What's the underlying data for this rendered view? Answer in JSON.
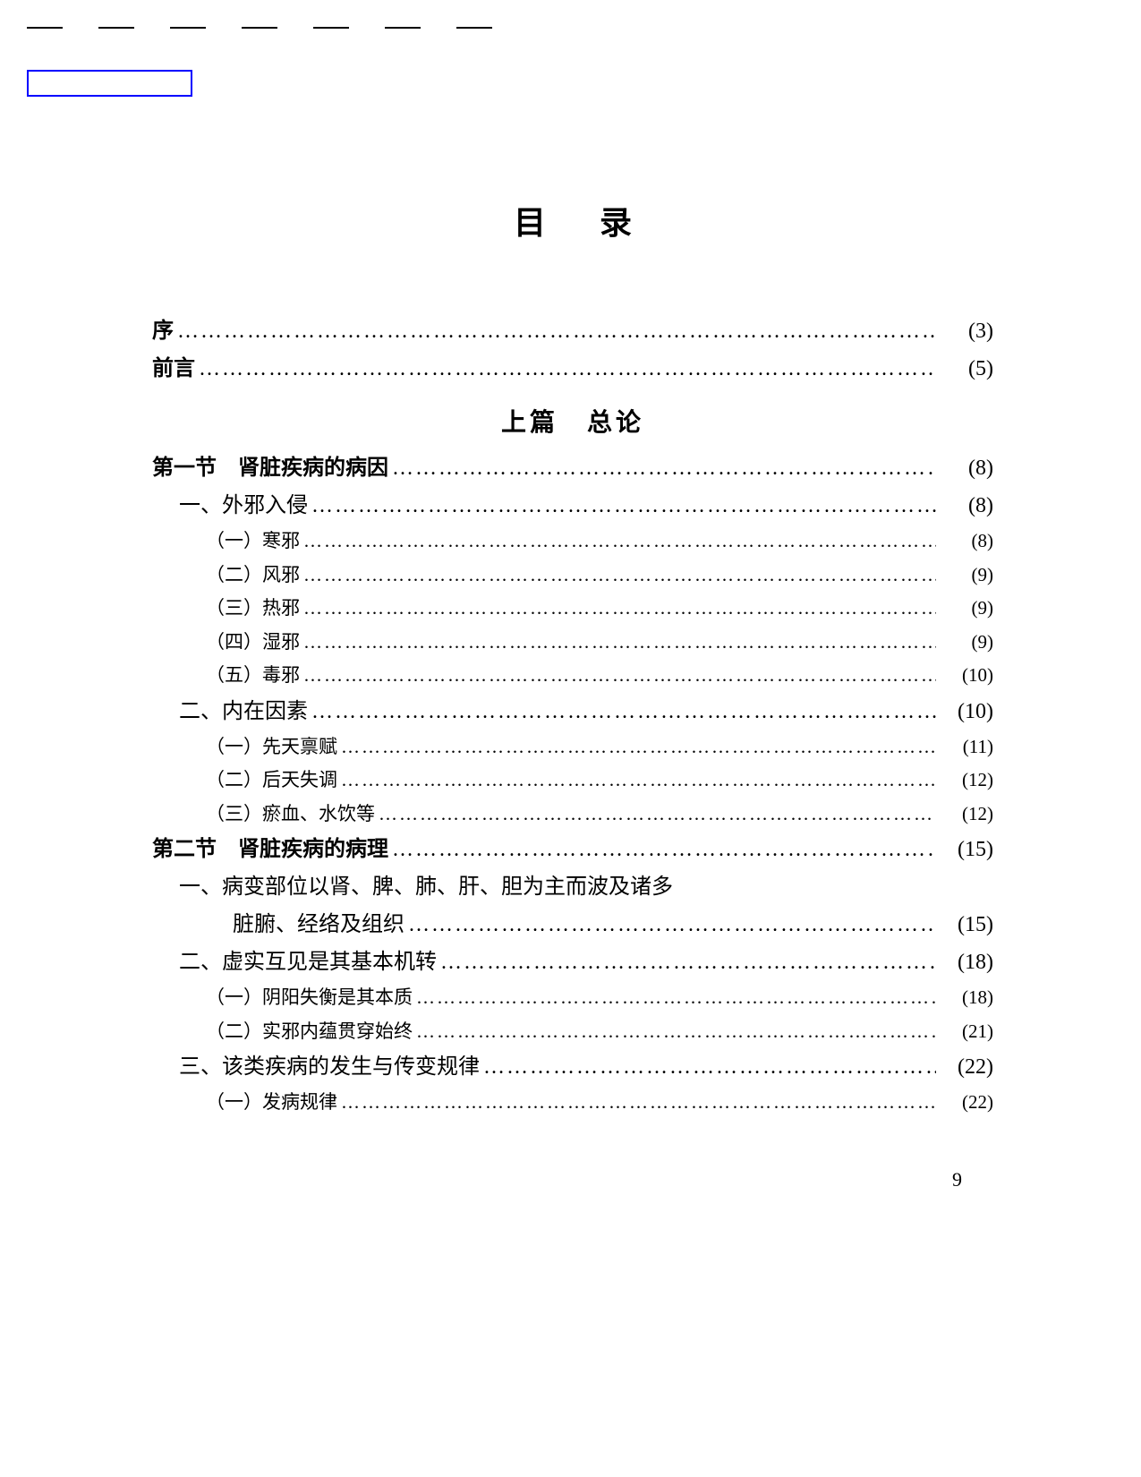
{
  "title": "目录",
  "section_header": "上篇　总论",
  "page_number": "9",
  "entries": [
    {
      "label": "序",
      "page": "(3)",
      "indent": 0,
      "bold": true,
      "small": false
    },
    {
      "label": "前言",
      "page": "(5)",
      "indent": 0,
      "bold": true,
      "small": false
    }
  ],
  "entries2": [
    {
      "label": "第一节　肾脏疾病的病因",
      "page": "(8)",
      "indent": 0,
      "bold": true,
      "small": false
    },
    {
      "label": "一、外邪入侵",
      "page": "(8)",
      "indent": 1,
      "bold": false,
      "small": false
    },
    {
      "label": "（一）寒邪",
      "page": "(8)",
      "indent": 2,
      "bold": false,
      "small": true
    },
    {
      "label": "（二）风邪",
      "page": "(9)",
      "indent": 2,
      "bold": false,
      "small": true
    },
    {
      "label": "（三）热邪",
      "page": "(9)",
      "indent": 2,
      "bold": false,
      "small": true
    },
    {
      "label": "（四）湿邪",
      "page": "(9)",
      "indent": 2,
      "bold": false,
      "small": true
    },
    {
      "label": "（五）毒邪",
      "page": "(10)",
      "indent": 2,
      "bold": false,
      "small": true
    },
    {
      "label": "二、内在因素",
      "page": "(10)",
      "indent": 1,
      "bold": false,
      "small": false
    },
    {
      "label": "（一）先天禀赋",
      "page": "(11)",
      "indent": 2,
      "bold": false,
      "small": true
    },
    {
      "label": "（二）后天失调",
      "page": "(12)",
      "indent": 2,
      "bold": false,
      "small": true
    },
    {
      "label": "（三）瘀血、水饮等",
      "page": "(12)",
      "indent": 2,
      "bold": false,
      "small": true
    },
    {
      "label": "第二节　肾脏疾病的病理",
      "page": "(15)",
      "indent": 0,
      "bold": true,
      "small": false
    }
  ],
  "multiline": {
    "line1": "一、病变部位以肾、脾、肺、肝、胆为主而波及诸多",
    "line2": "脏腑、经络及组织",
    "page": "(15)"
  },
  "entries3": [
    {
      "label": "二、虚实互见是其基本机转",
      "page": "(18)",
      "indent": 1,
      "bold": false,
      "small": false
    },
    {
      "label": "（一）阴阳失衡是其本质",
      "page": "(18)",
      "indent": 2,
      "bold": false,
      "small": true
    },
    {
      "label": "（二）实邪内蕴贯穿始终",
      "page": "(21)",
      "indent": 2,
      "bold": false,
      "small": true
    },
    {
      "label": "三、该类疾病的发生与传变规律",
      "page": "(22)",
      "indent": 1,
      "bold": false,
      "small": false
    },
    {
      "label": "（一）发病规律",
      "page": "(22)",
      "indent": 2,
      "bold": false,
      "small": true
    }
  ]
}
